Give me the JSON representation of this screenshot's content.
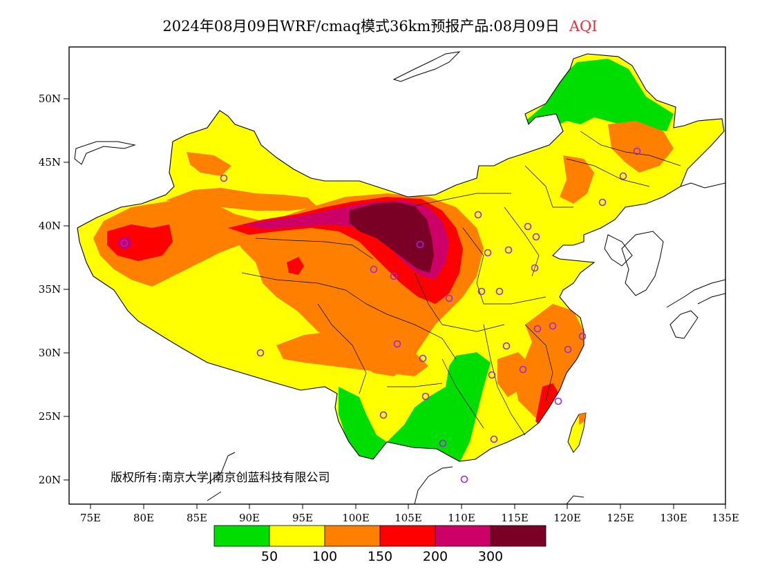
{
  "title": "2024年08月09日WRF/cmaq模式36km预报产品:08月09日",
  "variable": "AQI",
  "copyright": "版权所有:南京大学|南京创蓝科技有限公司",
  "axes": {
    "lat_ticks": [
      "50N",
      "45N",
      "40N",
      "35N",
      "30N",
      "25N",
      "20N"
    ],
    "lon_ticks": [
      "75E",
      "80E",
      "85E",
      "90E",
      "95E",
      "100E",
      "105E",
      "110E",
      "115E",
      "120E",
      "125E",
      "130E",
      "135E"
    ]
  },
  "legend": {
    "colors": [
      "#00dd00",
      "#ffff00",
      "#ff8000",
      "#ff0000",
      "#cc0066",
      "#7a0025"
    ],
    "labels": [
      "50",
      "100",
      "150",
      "200",
      "300"
    ]
  },
  "station_color": "#9a28d8"
}
